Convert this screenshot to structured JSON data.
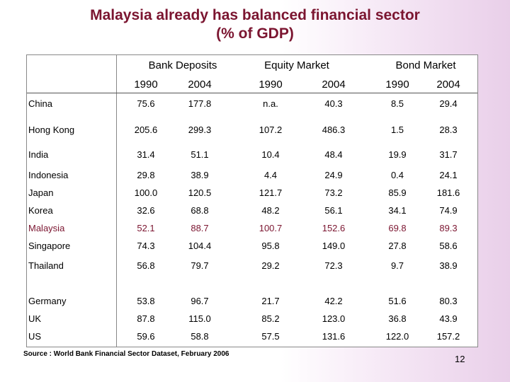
{
  "title_line1": "Malaysia already has balanced financial sector",
  "title_line2": "(% of GDP)",
  "groups": [
    "Bank Deposits",
    "Equity Market",
    "Bond Market"
  ],
  "years": [
    "1990",
    "2004",
    "1990",
    "2004",
    "1990",
    "2004"
  ],
  "rows": [
    {
      "country": "China",
      "values": [
        "75.6",
        "177.8",
        "n.a.",
        "40.3",
        "8.5",
        "29.4"
      ]
    },
    {
      "country": "Hong Kong",
      "values": [
        "205.6",
        "299.3",
        "107.2",
        "486.3",
        "1.5",
        "28.3"
      ]
    },
    {
      "country": "India",
      "values": [
        "31.4",
        "51.1",
        "10.4",
        "48.4",
        "19.9",
        "31.7"
      ]
    },
    {
      "country": "Indonesia",
      "values": [
        "29.8",
        "38.9",
        "4.4",
        "24.9",
        "0.4",
        "24.1"
      ]
    },
    {
      "country": "Japan",
      "values": [
        "100.0",
        "120.5",
        "121.7",
        "73.2",
        "85.9",
        "181.6"
      ]
    },
    {
      "country": "Korea",
      "values": [
        "32.6",
        "68.8",
        "48.2",
        "56.1",
        "34.1",
        "74.9"
      ]
    },
    {
      "country": "Malaysia",
      "values": [
        "52.1",
        "88.7",
        "100.7",
        "152.6",
        "69.8",
        "89.3"
      ]
    },
    {
      "country": "Singapore",
      "values": [
        "74.3",
        "104.4",
        "95.8",
        "149.0",
        "27.8",
        "58.6"
      ]
    },
    {
      "country": "Thailand",
      "values": [
        "56.8",
        "79.7",
        "29.2",
        "72.3",
        "9.7",
        "38.9"
      ]
    },
    {
      "country": "Germany",
      "values": [
        "53.8",
        "96.7",
        "21.7",
        "42.2",
        "51.6",
        "80.3"
      ]
    },
    {
      "country": "UK",
      "values": [
        "87.8",
        "115.0",
        "85.2",
        "123.0",
        "36.8",
        "43.9"
      ]
    },
    {
      "country": "US",
      "values": [
        "59.6",
        "58.8",
        "57.5",
        "131.6",
        "122.0",
        "157.2"
      ]
    }
  ],
  "highlight_color": "#7b1530",
  "source": "Source : World Bank Financial Sector Dataset, February 2006",
  "page_number": "12"
}
